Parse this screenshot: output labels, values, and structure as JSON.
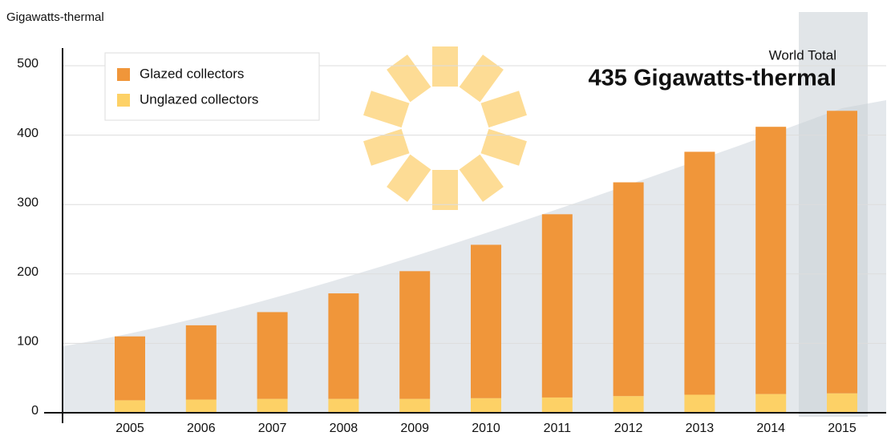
{
  "chart_data": {
    "type": "stacked-bar",
    "y_label": "Gigawatts-thermal",
    "annotation_title": "World Total",
    "annotation_value": "435 Gigawatts-thermal",
    "categories": [
      "2005",
      "2006",
      "2007",
      "2008",
      "2009",
      "2010",
      "2011",
      "2012",
      "2013",
      "2014",
      "2015"
    ],
    "series": [
      {
        "name": "Glazed collectors",
        "color": "#f0963a",
        "values": [
          92,
          107,
          125,
          152,
          184,
          221,
          264,
          308,
          350,
          385,
          407
        ]
      },
      {
        "name": "Unglazed collectors",
        "color": "#fdd166",
        "values": [
          18,
          19,
          20,
          20,
          20,
          21,
          22,
          24,
          26,
          27,
          28
        ]
      }
    ],
    "ylim": [
      0,
      525
    ],
    "yticks": [
      0,
      100,
      200,
      300,
      400,
      500
    ],
    "grid": true
  }
}
